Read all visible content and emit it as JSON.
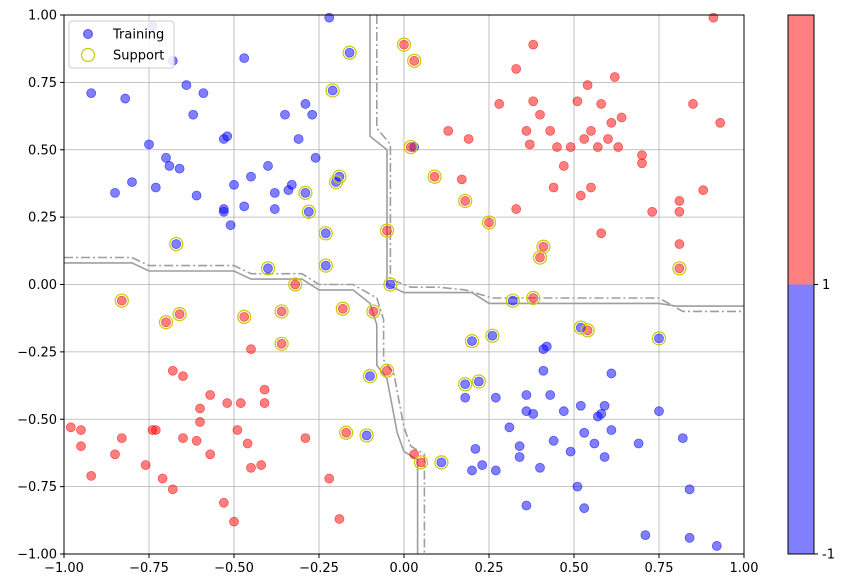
{
  "chart_data": {
    "type": "scatter",
    "xlim": [
      -1,
      1
    ],
    "ylim": [
      -1,
      1
    ],
    "grid": true,
    "legend_position": "top-left",
    "x_ticks": [
      "−1.00",
      "−0.75",
      "−0.50",
      "−0.25",
      "0.00",
      "0.25",
      "0.50",
      "0.75",
      "1.00"
    ],
    "y_ticks": [
      "−1.00",
      "−0.75",
      "−0.50",
      "−0.25",
      "0.00",
      "0.25",
      "0.50",
      "0.75",
      "1.00"
    ],
    "x_tick_values": [
      -1,
      -0.75,
      -0.5,
      -0.25,
      0,
      0.25,
      0.5,
      0.75,
      1
    ],
    "y_tick_values": [
      -1,
      -0.75,
      -0.5,
      -0.25,
      0,
      0.25,
      0.5,
      0.75,
      1
    ],
    "colors": {
      "class_neg": "#0000ff",
      "class_pos": "#ff0000",
      "support": "#c8c800",
      "boundary": "#9e9e9e",
      "grid": "#b0b0b0"
    },
    "legend": [
      {
        "label": "Training",
        "marker": "filled-circle",
        "color": "#0000ff"
      },
      {
        "label": "Support",
        "marker": "hollow-circle",
        "color": "#c8c800"
      }
    ],
    "colorbar": {
      "ticks": [
        "1",
        "-1"
      ],
      "tick_values": [
        1,
        -1
      ],
      "colors": [
        "#ff8080",
        "#8080ff"
      ]
    },
    "series": [
      {
        "class": -1,
        "color": "#0000ff",
        "points": [
          [
            -0.92,
            0.71
          ],
          [
            -0.82,
            0.69
          ],
          [
            -0.85,
            0.34
          ],
          [
            -0.8,
            0.38
          ],
          [
            -0.75,
            0.52
          ],
          [
            -0.73,
            0.36
          ],
          [
            -0.7,
            0.47
          ],
          [
            -0.69,
            0.44
          ],
          [
            -0.68,
            0.83
          ],
          [
            -0.66,
            0.43
          ],
          [
            -0.64,
            0.74
          ],
          [
            -0.62,
            0.63
          ],
          [
            -0.61,
            0.33
          ],
          [
            -0.59,
            0.71
          ],
          [
            -0.53,
            0.54
          ],
          [
            -0.52,
            0.55
          ],
          [
            -0.53,
            0.27
          ],
          [
            -0.53,
            0.28
          ],
          [
            -0.51,
            0.22
          ],
          [
            -0.5,
            0.37
          ],
          [
            -0.47,
            0.29
          ],
          [
            -0.47,
            0.84
          ],
          [
            -0.45,
            0.4
          ],
          [
            -0.35,
            0.63
          ],
          [
            -0.38,
            0.34
          ],
          [
            -0.38,
            0.28
          ],
          [
            -0.34,
            0.35
          ],
          [
            -0.33,
            0.37
          ],
          [
            -0.31,
            0.54
          ],
          [
            -0.29,
            0.67
          ],
          [
            -0.27,
            0.63
          ],
          [
            -0.26,
            0.47
          ],
          [
            -0.22,
            0.99
          ],
          [
            -0.74,
            0.96
          ],
          [
            -0.4,
            0.44
          ],
          [
            -0.21,
            0.72
          ],
          [
            -0.16,
            0.86
          ],
          [
            0.03,
            0.51
          ],
          [
            -0.67,
            0.15
          ],
          [
            -0.19,
            0.4
          ],
          [
            -0.2,
            0.38
          ],
          [
            -0.28,
            0.27
          ],
          [
            -0.29,
            0.34
          ],
          [
            -0.23,
            0.19
          ],
          [
            -0.4,
            0.06
          ],
          [
            -0.23,
            0.07
          ],
          [
            -0.04,
            0.0
          ],
          [
            0.2,
            -0.21
          ],
          [
            0.26,
            -0.19
          ],
          [
            0.18,
            -0.37
          ],
          [
            0.22,
            -0.36
          ],
          [
            0.32,
            -0.06
          ],
          [
            0.52,
            -0.16
          ],
          [
            0.75,
            -0.2
          ],
          [
            0.11,
            -0.66
          ],
          [
            -0.11,
            -0.56
          ],
          [
            -0.1,
            -0.34
          ],
          [
            0.18,
            -0.42
          ],
          [
            0.2,
            -0.69
          ],
          [
            0.21,
            -0.61
          ],
          [
            0.23,
            -0.67
          ],
          [
            0.27,
            -0.69
          ],
          [
            0.27,
            -0.42
          ],
          [
            0.31,
            -0.53
          ],
          [
            0.34,
            -0.6
          ],
          [
            0.34,
            -0.64
          ],
          [
            0.36,
            -0.41
          ],
          [
            0.36,
            -0.47
          ],
          [
            0.38,
            -0.48
          ],
          [
            0.4,
            -0.68
          ],
          [
            0.41,
            -0.32
          ],
          [
            0.41,
            -0.24
          ],
          [
            0.42,
            -0.23
          ],
          [
            0.43,
            -0.41
          ],
          [
            0.44,
            -0.58
          ],
          [
            0.47,
            -0.47
          ],
          [
            0.49,
            -0.62
          ],
          [
            0.51,
            -0.75
          ],
          [
            0.53,
            -0.83
          ],
          [
            0.52,
            -0.45
          ],
          [
            0.53,
            -0.55
          ],
          [
            0.56,
            -0.59
          ],
          [
            0.57,
            -0.49
          ],
          [
            0.58,
            -0.48
          ],
          [
            0.59,
            -0.45
          ],
          [
            0.59,
            -0.64
          ],
          [
            0.61,
            -0.33
          ],
          [
            0.61,
            -0.54
          ],
          [
            0.69,
            -0.59
          ],
          [
            0.71,
            -0.93
          ],
          [
            0.75,
            -0.47
          ],
          [
            0.82,
            -0.57
          ],
          [
            0.84,
            -0.76
          ],
          [
            0.84,
            -0.94
          ],
          [
            0.92,
            -0.97
          ],
          [
            0.36,
            -0.82
          ]
        ]
      },
      {
        "class": 1,
        "color": "#ff0000",
        "points": [
          [
            0.0,
            0.89
          ],
          [
            0.03,
            0.83
          ],
          [
            0.02,
            0.51
          ],
          [
            0.09,
            0.4
          ],
          [
            0.13,
            0.57
          ],
          [
            0.17,
            0.39
          ],
          [
            0.18,
            0.31
          ],
          [
            0.19,
            0.54
          ],
          [
            0.25,
            0.23
          ],
          [
            0.28,
            0.67
          ],
          [
            0.33,
            0.8
          ],
          [
            0.33,
            0.28
          ],
          [
            0.36,
            0.57
          ],
          [
            0.37,
            0.52
          ],
          [
            0.38,
            0.68
          ],
          [
            0.38,
            0.89
          ],
          [
            0.4,
            0.63
          ],
          [
            0.4,
            0.1
          ],
          [
            0.41,
            0.14
          ],
          [
            0.43,
            0.57
          ],
          [
            0.44,
            0.36
          ],
          [
            0.45,
            0.51
          ],
          [
            0.47,
            0.44
          ],
          [
            0.49,
            0.51
          ],
          [
            0.51,
            0.68
          ],
          [
            0.52,
            0.33
          ],
          [
            0.53,
            0.54
          ],
          [
            0.54,
            0.74
          ],
          [
            0.55,
            0.57
          ],
          [
            0.55,
            0.36
          ],
          [
            0.57,
            0.51
          ],
          [
            0.58,
            0.67
          ],
          [
            0.6,
            0.54
          ],
          [
            0.61,
            0.6
          ],
          [
            0.62,
            0.77
          ],
          [
            0.63,
            0.51
          ],
          [
            0.64,
            0.62
          ],
          [
            0.7,
            0.48
          ],
          [
            0.7,
            0.45
          ],
          [
            0.73,
            0.27
          ],
          [
            0.81,
            0.31
          ],
          [
            0.81,
            0.27
          ],
          [
            0.81,
            0.15
          ],
          [
            0.85,
            0.67
          ],
          [
            0.88,
            0.35
          ],
          [
            0.91,
            0.99
          ],
          [
            0.93,
            0.6
          ],
          [
            0.58,
            0.19
          ],
          [
            0.81,
            0.06
          ],
          [
            0.38,
            -0.05
          ],
          [
            0.54,
            -0.17
          ],
          [
            -0.05,
            0.2
          ],
          [
            -0.32,
            0.0
          ],
          [
            -0.09,
            -0.1
          ],
          [
            -0.18,
            -0.09
          ],
          [
            -0.47,
            -0.12
          ],
          [
            -0.36,
            -0.1
          ],
          [
            -0.36,
            -0.22
          ],
          [
            -0.66,
            -0.11
          ],
          [
            -0.83,
            -0.06
          ],
          [
            -0.7,
            -0.14
          ],
          [
            -0.05,
            -0.32
          ],
          [
            -0.17,
            -0.55
          ],
          [
            0.05,
            -0.66
          ],
          [
            -0.98,
            -0.53
          ],
          [
            -0.95,
            -0.54
          ],
          [
            -0.95,
            -0.6
          ],
          [
            -0.92,
            -0.71
          ],
          [
            -0.85,
            -0.63
          ],
          [
            -0.83,
            -0.57
          ],
          [
            -0.76,
            -0.67
          ],
          [
            -0.74,
            -0.54
          ],
          [
            -0.73,
            -0.54
          ],
          [
            -0.71,
            -0.72
          ],
          [
            -0.68,
            -0.76
          ],
          [
            -0.68,
            -0.32
          ],
          [
            -0.65,
            -0.34
          ],
          [
            -0.65,
            -0.57
          ],
          [
            -0.61,
            -0.58
          ],
          [
            -0.6,
            -0.46
          ],
          [
            -0.6,
            -0.51
          ],
          [
            -0.57,
            -0.41
          ],
          [
            -0.57,
            -0.63
          ],
          [
            -0.53,
            -0.81
          ],
          [
            -0.52,
            -0.44
          ],
          [
            -0.5,
            -0.88
          ],
          [
            -0.49,
            -0.54
          ],
          [
            -0.48,
            -0.44
          ],
          [
            -0.46,
            -0.59
          ],
          [
            -0.45,
            -0.24
          ],
          [
            -0.45,
            -0.68
          ],
          [
            -0.42,
            -0.67
          ],
          [
            -0.41,
            -0.39
          ],
          [
            -0.41,
            -0.44
          ],
          [
            -0.29,
            -0.57
          ],
          [
            -0.22,
            -0.72
          ],
          [
            -0.19,
            -0.87
          ],
          [
            0.03,
            -0.63
          ]
        ]
      }
    ],
    "support_vectors": [
      [
        -0.67,
        0.15
      ],
      [
        -0.21,
        0.72
      ],
      [
        -0.16,
        0.86
      ],
      [
        0.0,
        0.89
      ],
      [
        0.03,
        0.83
      ],
      [
        0.02,
        0.51
      ],
      [
        0.09,
        0.4
      ],
      [
        -0.19,
        0.4
      ],
      [
        -0.2,
        0.38
      ],
      [
        -0.28,
        0.27
      ],
      [
        -0.29,
        0.34
      ],
      [
        -0.23,
        0.19
      ],
      [
        -0.05,
        0.2
      ],
      [
        0.18,
        0.31
      ],
      [
        0.25,
        0.23
      ],
      [
        0.41,
        0.14
      ],
      [
        0.4,
        0.1
      ],
      [
        0.81,
        0.06
      ],
      [
        -0.4,
        0.06
      ],
      [
        -0.23,
        0.07
      ],
      [
        -0.32,
        0.0
      ],
      [
        -0.04,
        0.0
      ],
      [
        -0.83,
        -0.06
      ],
      [
        -0.7,
        -0.14
      ],
      [
        -0.66,
        -0.11
      ],
      [
        -0.47,
        -0.12
      ],
      [
        -0.36,
        -0.1
      ],
      [
        -0.36,
        -0.22
      ],
      [
        -0.18,
        -0.09
      ],
      [
        -0.09,
        -0.1
      ],
      [
        -0.1,
        -0.34
      ],
      [
        -0.05,
        -0.32
      ],
      [
        -0.17,
        -0.55
      ],
      [
        -0.11,
        -0.56
      ],
      [
        0.05,
        -0.66
      ],
      [
        0.11,
        -0.66
      ],
      [
        0.2,
        -0.21
      ],
      [
        0.26,
        -0.19
      ],
      [
        0.18,
        -0.37
      ],
      [
        0.22,
        -0.36
      ],
      [
        0.32,
        -0.06
      ],
      [
        0.38,
        -0.05
      ],
      [
        0.52,
        -0.16
      ],
      [
        0.54,
        -0.17
      ],
      [
        0.75,
        -0.2
      ]
    ],
    "boundaries": [
      {
        "style": "solid",
        "paths": [
          [
            [
              -0.1,
              1.0
            ],
            [
              -0.1,
              0.55
            ],
            [
              -0.05,
              0.5
            ],
            [
              -0.05,
              0.1
            ],
            [
              -0.05,
              0.0
            ],
            [
              0.0,
              -0.03
            ],
            [
              0.1,
              -0.03
            ],
            [
              0.2,
              -0.03
            ],
            [
              0.25,
              -0.07
            ],
            [
              0.5,
              -0.07
            ],
            [
              0.75,
              -0.07
            ],
            [
              0.8,
              -0.08
            ],
            [
              1.0,
              -0.08
            ]
          ],
          [
            [
              -1.0,
              0.08
            ],
            [
              -0.8,
              0.08
            ],
            [
              -0.75,
              0.05
            ],
            [
              -0.5,
              0.05
            ],
            [
              -0.45,
              0.02
            ],
            [
              -0.3,
              0.02
            ],
            [
              -0.25,
              -0.02
            ],
            [
              -0.15,
              -0.02
            ],
            [
              -0.1,
              -0.07
            ],
            [
              -0.08,
              -0.15
            ],
            [
              -0.08,
              -0.3
            ],
            [
              -0.05,
              -0.35
            ],
            [
              -0.02,
              -0.55
            ],
            [
              0.0,
              -0.62
            ],
            [
              0.04,
              -0.65
            ],
            [
              0.04,
              -1.0
            ]
          ]
        ]
      },
      {
        "style": "dashdot",
        "paths": [
          [
            [
              -0.08,
              1.0
            ],
            [
              -0.08,
              0.58
            ],
            [
              -0.04,
              0.52
            ],
            [
              -0.04,
              0.12
            ],
            [
              -0.04,
              0.02
            ],
            [
              0.02,
              -0.01
            ],
            [
              0.1,
              -0.01
            ],
            [
              0.18,
              -0.02
            ],
            [
              0.26,
              -0.05
            ],
            [
              0.5,
              -0.05
            ],
            [
              0.75,
              -0.05
            ],
            [
              0.82,
              -0.1
            ],
            [
              1.0,
              -0.1
            ]
          ],
          [
            [
              -1.0,
              0.1
            ],
            [
              -0.8,
              0.1
            ],
            [
              -0.75,
              0.07
            ],
            [
              -0.5,
              0.07
            ],
            [
              -0.45,
              0.04
            ],
            [
              -0.3,
              0.04
            ],
            [
              -0.25,
              0.0
            ],
            [
              -0.15,
              0.0
            ],
            [
              -0.08,
              -0.05
            ],
            [
              -0.06,
              -0.13
            ],
            [
              -0.06,
              -0.28
            ],
            [
              -0.03,
              -0.33
            ],
            [
              0.0,
              -0.53
            ],
            [
              0.02,
              -0.6
            ],
            [
              0.06,
              -0.63
            ],
            [
              0.06,
              -1.0
            ]
          ]
        ]
      }
    ]
  }
}
